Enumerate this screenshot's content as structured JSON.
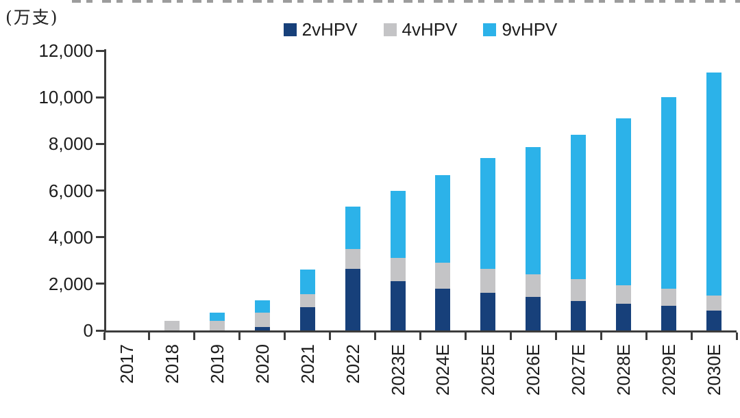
{
  "chart_data": {
    "type": "bar",
    "stacked": true,
    "unit_label": "(万支)",
    "categories": [
      "2017",
      "2018",
      "2019",
      "2020",
      "2021",
      "2022",
      "2023E",
      "2024E",
      "2025E",
      "2026E",
      "2027E",
      "2028E",
      "2029E",
      "2030E"
    ],
    "series": [
      {
        "name": "2vHPV",
        "color": "#17407a",
        "values": [
          0,
          0,
          0,
          150,
          1000,
          2650,
          2100,
          1800,
          1600,
          1450,
          1250,
          1150,
          1050,
          850
        ]
      },
      {
        "name": "4vHPV",
        "color": "#c4c4c6",
        "values": [
          0,
          400,
          400,
          600,
          550,
          850,
          1000,
          1100,
          1050,
          950,
          950,
          800,
          750,
          650
        ]
      },
      {
        "name": "9vHPV",
        "color": "#2cb2e9",
        "values": [
          0,
          0,
          350,
          550,
          1050,
          1800,
          2900,
          3750,
          4750,
          5450,
          6200,
          7150,
          8200,
          9550
        ]
      }
    ],
    "totals": [
      0,
      400,
      750,
      1300,
      2600,
      5300,
      6000,
      6650,
      7400,
      7850,
      8400,
      9100,
      10000,
      11050
    ],
    "ylim": [
      0,
      12000
    ],
    "ytick_step": 2000,
    "ytick_labels": [
      "0",
      "2,000",
      "4,000",
      "6,000",
      "8,000",
      "10,000",
      "12,000"
    ],
    "grid": false,
    "legend_position": "top-center",
    "axis_color": "#3c3c3c",
    "text_color": "#1c1c1c"
  }
}
